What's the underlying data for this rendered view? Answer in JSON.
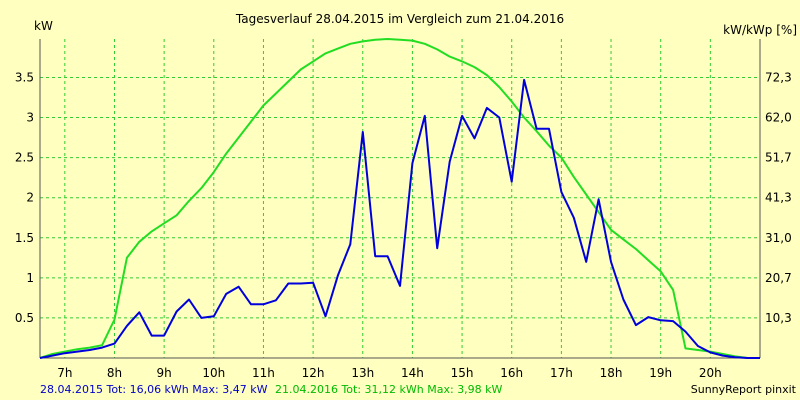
{
  "chart_data": {
    "type": "line",
    "title": "Tagesverlauf 28.04.2015 im Vergleich zum 21.04.2016",
    "ylabel_left": "kW",
    "ylabel_right": "kW/kWp [%]",
    "xlim": [
      6.5,
      21.0
    ],
    "ylim": [
      0,
      3.98
    ],
    "x_ticks": [
      7,
      8,
      9,
      10,
      11,
      12,
      13,
      14,
      15,
      16,
      17,
      18,
      19,
      20
    ],
    "x_tick_labels": [
      "7h",
      "8h",
      "9h",
      "10h",
      "11h",
      "12h",
      "13h",
      "14h",
      "15h",
      "16h",
      "17h",
      "18h",
      "19h",
      "20h"
    ],
    "y_ticks": [
      0.5,
      1,
      1.5,
      2,
      2.5,
      3,
      3.5
    ],
    "y_tick_labels": [
      "0.5",
      "1",
      "1.5",
      "2",
      "2.5",
      "3",
      "3.5"
    ],
    "y_right_tick_labels": [
      "10,3",
      "20,7",
      "31,0",
      "41,3",
      "51,7",
      "62,0",
      "72,3"
    ],
    "grid": true,
    "series": [
      {
        "name": "28.04.2015",
        "color": "#0000dd",
        "x": [
          6.5,
          6.75,
          7.0,
          7.25,
          7.5,
          7.75,
          8.0,
          8.25,
          8.5,
          8.75,
          9.0,
          9.25,
          9.5,
          9.75,
          10.0,
          10.25,
          10.5,
          10.75,
          11.0,
          11.25,
          11.5,
          11.75,
          12.0,
          12.25,
          12.5,
          12.75,
          13.0,
          13.25,
          13.5,
          13.75,
          14.0,
          14.25,
          14.5,
          14.75,
          15.0,
          15.25,
          15.5,
          15.75,
          16.0,
          16.25,
          16.5,
          16.75,
          17.0,
          17.25,
          17.5,
          17.75,
          18.0,
          18.25,
          18.5,
          18.75,
          19.0,
          19.25,
          19.5,
          19.75,
          20.0,
          20.25,
          20.5,
          20.75,
          21.0
        ],
        "values": [
          0.0,
          0.03,
          0.06,
          0.08,
          0.1,
          0.13,
          0.18,
          0.4,
          0.57,
          0.28,
          0.28,
          0.58,
          0.73,
          0.5,
          0.52,
          0.8,
          0.89,
          0.67,
          0.67,
          0.72,
          0.93,
          0.93,
          0.94,
          0.52,
          1.03,
          1.42,
          2.82,
          1.27,
          1.27,
          0.9,
          2.43,
          3.02,
          1.37,
          2.45,
          3.02,
          2.74,
          3.12,
          3.0,
          2.2,
          3.47,
          2.86,
          2.86,
          2.07,
          1.75,
          1.2,
          1.98,
          1.2,
          0.73,
          0.41,
          0.51,
          0.47,
          0.46,
          0.33,
          0.15,
          0.07,
          0.03,
          0.01,
          0.0,
          0.0
        ]
      },
      {
        "name": "21.04.2016",
        "color": "#22dd22",
        "x": [
          6.5,
          6.75,
          7.0,
          7.25,
          7.5,
          7.75,
          8.0,
          8.25,
          8.5,
          8.75,
          9.0,
          9.25,
          9.5,
          9.75,
          10.0,
          10.25,
          10.5,
          10.75,
          11.0,
          11.25,
          11.5,
          11.75,
          12.0,
          12.25,
          12.5,
          12.75,
          13.0,
          13.25,
          13.5,
          13.75,
          14.0,
          14.25,
          14.5,
          14.75,
          15.0,
          15.25,
          15.5,
          15.75,
          16.0,
          16.25,
          16.5,
          16.75,
          17.0,
          17.25,
          17.5,
          17.75,
          18.0,
          18.25,
          18.5,
          18.75,
          19.0,
          19.25,
          19.5,
          19.75,
          20.0,
          20.25,
          20.5,
          20.75,
          21.0
        ],
        "values": [
          0.0,
          0.05,
          0.08,
          0.11,
          0.13,
          0.16,
          0.48,
          1.25,
          1.45,
          1.58,
          1.68,
          1.78,
          1.96,
          2.12,
          2.32,
          2.55,
          2.75,
          2.95,
          3.15,
          3.3,
          3.45,
          3.6,
          3.7,
          3.8,
          3.86,
          3.92,
          3.95,
          3.97,
          3.98,
          3.97,
          3.96,
          3.92,
          3.85,
          3.76,
          3.7,
          3.63,
          3.53,
          3.38,
          3.2,
          3.0,
          2.83,
          2.65,
          2.5,
          2.26,
          2.04,
          1.82,
          1.6,
          1.48,
          1.36,
          1.22,
          1.08,
          0.85,
          0.12,
          0.1,
          0.08,
          0.05,
          0.02,
          0.0,
          0.0
        ]
      }
    ]
  },
  "footer": {
    "series1_info": "28.04.2015 Tot: 16,06 kWh Max: 3,47 kW",
    "series2_info": "21.04.2016 Tot: 31,12 kWh Max: 3,98 kW",
    "credit": "SunnyReport pinxit"
  }
}
